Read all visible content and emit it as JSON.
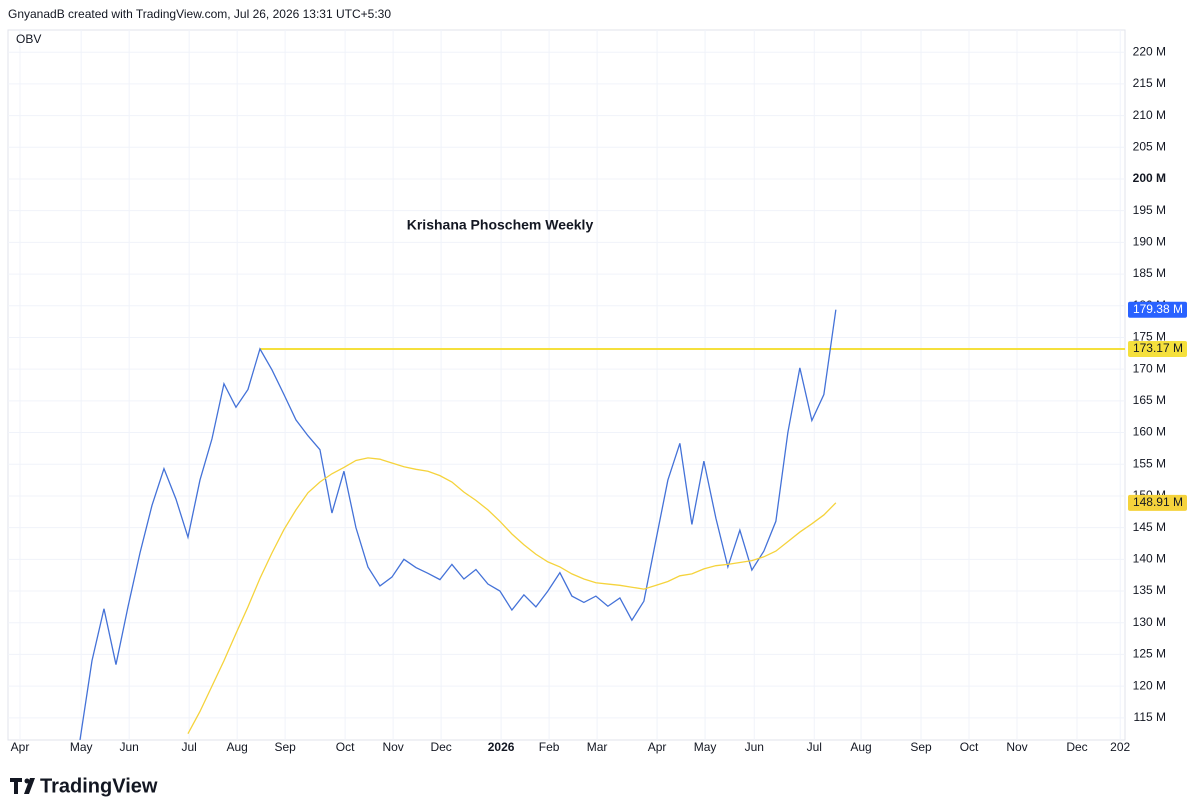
{
  "header": "GnyanadB created with TradingView.com, Jul 26, 2026 13:31 UTC+5:30",
  "footer": "TradingView",
  "chart_data": {
    "type": "line",
    "indicator": "OBV",
    "title": "Krishana Phoschem Weekly",
    "x": [
      5,
      6,
      7,
      8,
      9,
      10,
      11,
      12,
      13,
      14,
      15,
      16,
      17,
      18,
      19,
      20,
      21,
      22,
      23,
      24,
      25,
      26,
      27,
      28,
      29,
      30,
      31,
      32,
      33,
      34,
      35,
      36,
      37,
      38,
      39,
      40,
      41,
      42,
      43,
      44,
      45,
      46,
      47,
      48,
      49,
      50,
      51,
      52,
      53,
      54,
      55,
      56,
      57,
      58,
      59,
      60,
      61,
      62,
      63,
      64,
      65,
      66,
      67,
      68
    ],
    "series": [
      {
        "color": "#4472d8",
        "values": [
          111.5,
          124,
          132.2,
          123.4,
          132.5,
          141,
          148.5,
          154.3,
          149.5,
          143.5,
          152.5,
          159,
          167.7,
          164,
          166.8,
          173.2,
          169.9,
          166,
          162,
          159.5,
          157.3,
          147.3,
          153.9,
          145,
          138.8,
          135.8,
          137.2,
          140,
          138.7,
          137.8,
          136.8,
          139.2,
          136.9,
          138.4,
          136.1,
          135,
          132,
          134.4,
          132.5,
          135,
          137.9,
          134.2,
          133.2,
          134.2,
          132.6,
          133.9,
          130.4,
          133.4,
          143,
          152.5,
          158.3,
          145.5,
          155.5,
          146.5,
          138.8,
          144.6,
          138.3,
          141.3,
          146,
          160,
          170.2,
          161.9,
          166,
          179.38
        ],
        "last_label": "179.38 M",
        "label_color": "#2962ff"
      },
      {
        "color": "#f5d33c",
        "values": [
          null,
          null,
          null,
          null,
          null,
          null,
          null,
          null,
          null,
          112.5,
          116,
          120,
          124,
          128.3,
          132.5,
          137,
          141,
          144.7,
          147.8,
          150.5,
          152.2,
          153.5,
          154.5,
          155.6,
          156,
          155.8,
          155.2,
          154.6,
          154.2,
          153.9,
          153.2,
          152.2,
          150.6,
          149.3,
          147.8,
          146,
          144,
          142.3,
          140.8,
          139.6,
          138.8,
          137.7,
          136.9,
          136.3,
          136.1,
          135.9,
          135.6,
          135.3,
          135.9,
          136.5,
          137.4,
          137.7,
          138.5,
          139,
          139.2,
          139.5,
          139.8,
          140.4,
          141.3,
          142.8,
          144.3,
          145.6,
          147,
          148.91
        ],
        "last_label": "148.91 M",
        "label_color": "#f5d33c"
      }
    ],
    "levels": [
      {
        "value": 173.17,
        "start": 20,
        "label": "173.17 M",
        "color": "#f5e03c"
      }
    ],
    "xlim": [
      -1,
      92.1
    ],
    "ylim": [
      111.5,
      223.5
    ],
    "grid": true,
    "xticks": [
      {
        "value": 0,
        "label": "Apr"
      },
      {
        "value": 5.1,
        "label": "May"
      },
      {
        "value": 9.1,
        "label": "Jun"
      },
      {
        "value": 14.1,
        "label": "Jul"
      },
      {
        "value": 18.1,
        "label": "Aug"
      },
      {
        "value": 22.1,
        "label": "Sep"
      },
      {
        "value": 27.1,
        "label": "Oct"
      },
      {
        "value": 31.1,
        "label": "Nov"
      },
      {
        "value": 35.1,
        "label": "Dec"
      },
      {
        "value": 40.1,
        "label": "2026",
        "bold": true
      },
      {
        "value": 44.1,
        "label": "Feb"
      },
      {
        "value": 48.1,
        "label": "Mar"
      },
      {
        "value": 53.1,
        "label": "Apr"
      },
      {
        "value": 57.1,
        "label": "May"
      },
      {
        "value": 61.2,
        "label": "Jun"
      },
      {
        "value": 66.2,
        "label": "Jul"
      },
      {
        "value": 70.1,
        "label": "Aug"
      },
      {
        "value": 75.1,
        "label": "Sep"
      },
      {
        "value": 79.1,
        "label": "Oct"
      },
      {
        "value": 83.1,
        "label": "Nov"
      },
      {
        "value": 88.1,
        "label": "Dec"
      },
      {
        "value": 91.7,
        "label": "202"
      }
    ],
    "yticks": [
      {
        "value": 115,
        "label": "115 M"
      },
      {
        "value": 120,
        "label": "120 M"
      },
      {
        "value": 125,
        "label": "125 M"
      },
      {
        "value": 130,
        "label": "130 M"
      },
      {
        "value": 135,
        "label": "135 M"
      },
      {
        "value": 140,
        "label": "140 M"
      },
      {
        "value": 145,
        "label": "145 M"
      },
      {
        "value": 150,
        "label": "150 M"
      },
      {
        "value": 155,
        "label": "155 M"
      },
      {
        "value": 160,
        "label": "160 M"
      },
      {
        "value": 165,
        "label": "165 M"
      },
      {
        "value": 170,
        "label": "170 M"
      },
      {
        "value": 175,
        "label": "175 M"
      },
      {
        "value": 180,
        "label": "180 M"
      },
      {
        "value": 185,
        "label": "185 M"
      },
      {
        "value": 190,
        "label": "190 M"
      },
      {
        "value": 195,
        "label": "195 M"
      },
      {
        "value": 200,
        "label": "200 M",
        "bold": true
      },
      {
        "value": 205,
        "label": "205 M"
      },
      {
        "value": 210,
        "label": "210 M"
      },
      {
        "value": 215,
        "label": "215 M"
      },
      {
        "value": 220,
        "label": "220 M"
      }
    ]
  }
}
